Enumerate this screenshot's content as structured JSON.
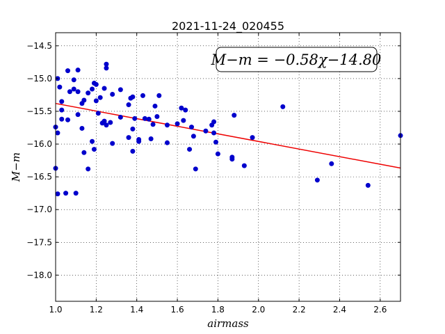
{
  "chart_data": {
    "type": "scatter",
    "title": "2021-11-24_020455",
    "xlabel": "airmass",
    "ylabel": "M−m",
    "xlim": [
      1.0,
      2.7
    ],
    "ylim": [
      -18.4,
      -14.3
    ],
    "x_ticks": [
      "1.0",
      "1.2",
      "1.4",
      "1.6",
      "1.8",
      "2.0",
      "2.2",
      "2.4",
      "2.6"
    ],
    "y_ticks": [
      "−14.5",
      "−15.0",
      "−15.5",
      "−16.0",
      "−16.5",
      "−17.0",
      "−17.5",
      "−18.0"
    ],
    "grid": true,
    "point_color": "#0000cc",
    "fit_color": "#ee0000",
    "annotation": "M−m = −0.58χ−14.80",
    "fit": {
      "slope": -0.58,
      "intercept": -14.8
    },
    "points": [
      {
        "x": 1.0,
        "y": -15.74
      },
      {
        "x": 1.0,
        "y": -16.37
      },
      {
        "x": 1.01,
        "y": -15.83
      },
      {
        "x": 1.01,
        "y": -16.76
      },
      {
        "x": 1.01,
        "y": -15.0
      },
      {
        "x": 1.02,
        "y": -15.13
      },
      {
        "x": 1.03,
        "y": -15.35
      },
      {
        "x": 1.03,
        "y": -15.48
      },
      {
        "x": 1.03,
        "y": -15.62
      },
      {
        "x": 1.05,
        "y": -16.75
      },
      {
        "x": 1.06,
        "y": -14.88
      },
      {
        "x": 1.06,
        "y": -15.63
      },
      {
        "x": 1.07,
        "y": -15.2
      },
      {
        "x": 1.09,
        "y": -15.02
      },
      {
        "x": 1.09,
        "y": -15.16
      },
      {
        "x": 1.1,
        "y": -16.75
      },
      {
        "x": 1.11,
        "y": -15.2
      },
      {
        "x": 1.11,
        "y": -15.55
      },
      {
        "x": 1.11,
        "y": -14.87
      },
      {
        "x": 1.13,
        "y": -15.76
      },
      {
        "x": 1.13,
        "y": -15.38
      },
      {
        "x": 1.14,
        "y": -15.33
      },
      {
        "x": 1.14,
        "y": -16.13
      },
      {
        "x": 1.16,
        "y": -15.22
      },
      {
        "x": 1.16,
        "y": -16.38
      },
      {
        "x": 1.18,
        "y": -15.16
      },
      {
        "x": 1.18,
        "y": -15.96
      },
      {
        "x": 1.19,
        "y": -15.07
      },
      {
        "x": 1.19,
        "y": -16.08
      },
      {
        "x": 1.2,
        "y": -15.09
      },
      {
        "x": 1.2,
        "y": -15.34
      },
      {
        "x": 1.21,
        "y": -15.53
      },
      {
        "x": 1.22,
        "y": -15.29
      },
      {
        "x": 1.23,
        "y": -15.68
      },
      {
        "x": 1.24,
        "y": -15.15
      },
      {
        "x": 1.24,
        "y": -15.65
      },
      {
        "x": 1.25,
        "y": -15.71
      },
      {
        "x": 1.25,
        "y": -14.78
      },
      {
        "x": 1.25,
        "y": -14.84
      },
      {
        "x": 1.27,
        "y": -15.67
      },
      {
        "x": 1.28,
        "y": -15.99
      },
      {
        "x": 1.28,
        "y": -15.24
      },
      {
        "x": 1.32,
        "y": -15.17
      },
      {
        "x": 1.32,
        "y": -15.59
      },
      {
        "x": 1.36,
        "y": -15.4
      },
      {
        "x": 1.36,
        "y": -15.9
      },
      {
        "x": 1.37,
        "y": -15.3
      },
      {
        "x": 1.38,
        "y": -15.28
      },
      {
        "x": 1.38,
        "y": -15.77
      },
      {
        "x": 1.38,
        "y": -16.11
      },
      {
        "x": 1.39,
        "y": -15.61
      },
      {
        "x": 1.41,
        "y": -15.93
      },
      {
        "x": 1.41,
        "y": -15.96
      },
      {
        "x": 1.43,
        "y": -15.26
      },
      {
        "x": 1.44,
        "y": -15.61
      },
      {
        "x": 1.46,
        "y": -15.62
      },
      {
        "x": 1.47,
        "y": -15.92
      },
      {
        "x": 1.48,
        "y": -15.7
      },
      {
        "x": 1.49,
        "y": -15.42
      },
      {
        "x": 1.5,
        "y": -15.58
      },
      {
        "x": 1.51,
        "y": -15.26
      },
      {
        "x": 1.55,
        "y": -15.71
      },
      {
        "x": 1.55,
        "y": -15.98
      },
      {
        "x": 1.6,
        "y": -15.69
      },
      {
        "x": 1.62,
        "y": -15.45
      },
      {
        "x": 1.63,
        "y": -15.64
      },
      {
        "x": 1.64,
        "y": -15.48
      },
      {
        "x": 1.66,
        "y": -16.08
      },
      {
        "x": 1.67,
        "y": -15.74
      },
      {
        "x": 1.68,
        "y": -15.88
      },
      {
        "x": 1.69,
        "y": -16.38
      },
      {
        "x": 1.74,
        "y": -15.8
      },
      {
        "x": 1.77,
        "y": -15.71
      },
      {
        "x": 1.78,
        "y": -15.66
      },
      {
        "x": 1.78,
        "y": -15.83
      },
      {
        "x": 1.79,
        "y": -15.97
      },
      {
        "x": 1.8,
        "y": -16.15
      },
      {
        "x": 1.87,
        "y": -16.23
      },
      {
        "x": 1.87,
        "y": -16.2
      },
      {
        "x": 1.88,
        "y": -15.56
      },
      {
        "x": 1.93,
        "y": -16.33
      },
      {
        "x": 1.97,
        "y": -15.9
      },
      {
        "x": 2.12,
        "y": -15.43
      },
      {
        "x": 2.29,
        "y": -16.55
      },
      {
        "x": 2.36,
        "y": -16.3
      },
      {
        "x": 2.54,
        "y": -16.63
      },
      {
        "x": 2.7,
        "y": -15.87
      }
    ]
  }
}
